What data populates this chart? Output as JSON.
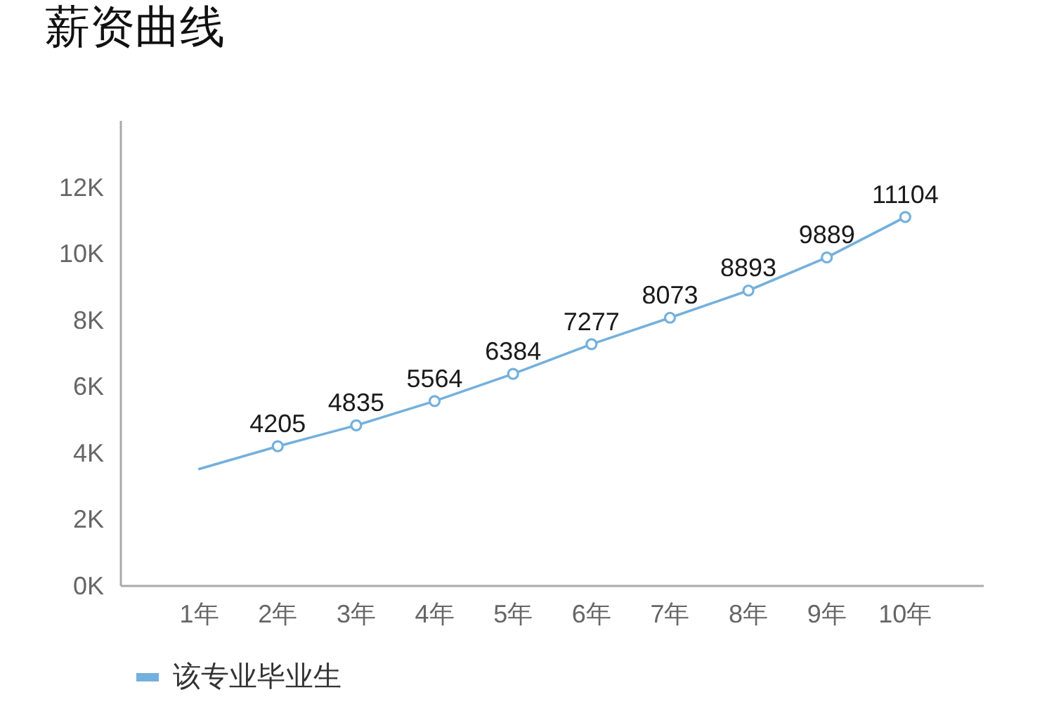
{
  "chart_data": {
    "type": "line",
    "title": "薪资曲线",
    "categories": [
      "1年",
      "2年",
      "3年",
      "4年",
      "5年",
      "6年",
      "7年",
      "8年",
      "9年",
      "10年"
    ],
    "series": [
      {
        "name": "该专业毕业生",
        "color": "#74b0dc",
        "values": [
          3520,
          4205,
          4835,
          5564,
          6384,
          7277,
          8073,
          8893,
          9889,
          11104
        ],
        "value_labels": [
          null,
          "4205",
          "4835",
          "5564",
          "6384",
          "7277",
          "8073",
          "8893",
          "9889",
          "11104"
        ]
      }
    ],
    "ylim": [
      0,
      14000
    ],
    "yticks": [
      {
        "value": 0,
        "label": "0K"
      },
      {
        "value": 2000,
        "label": "2K"
      },
      {
        "value": 4000,
        "label": "4K"
      },
      {
        "value": 6000,
        "label": "6K"
      },
      {
        "value": 8000,
        "label": "8K"
      },
      {
        "value": 10000,
        "label": "10K"
      },
      {
        "value": 12000,
        "label": "12K"
      }
    ],
    "marker": "circle",
    "legend": "bottom left"
  }
}
